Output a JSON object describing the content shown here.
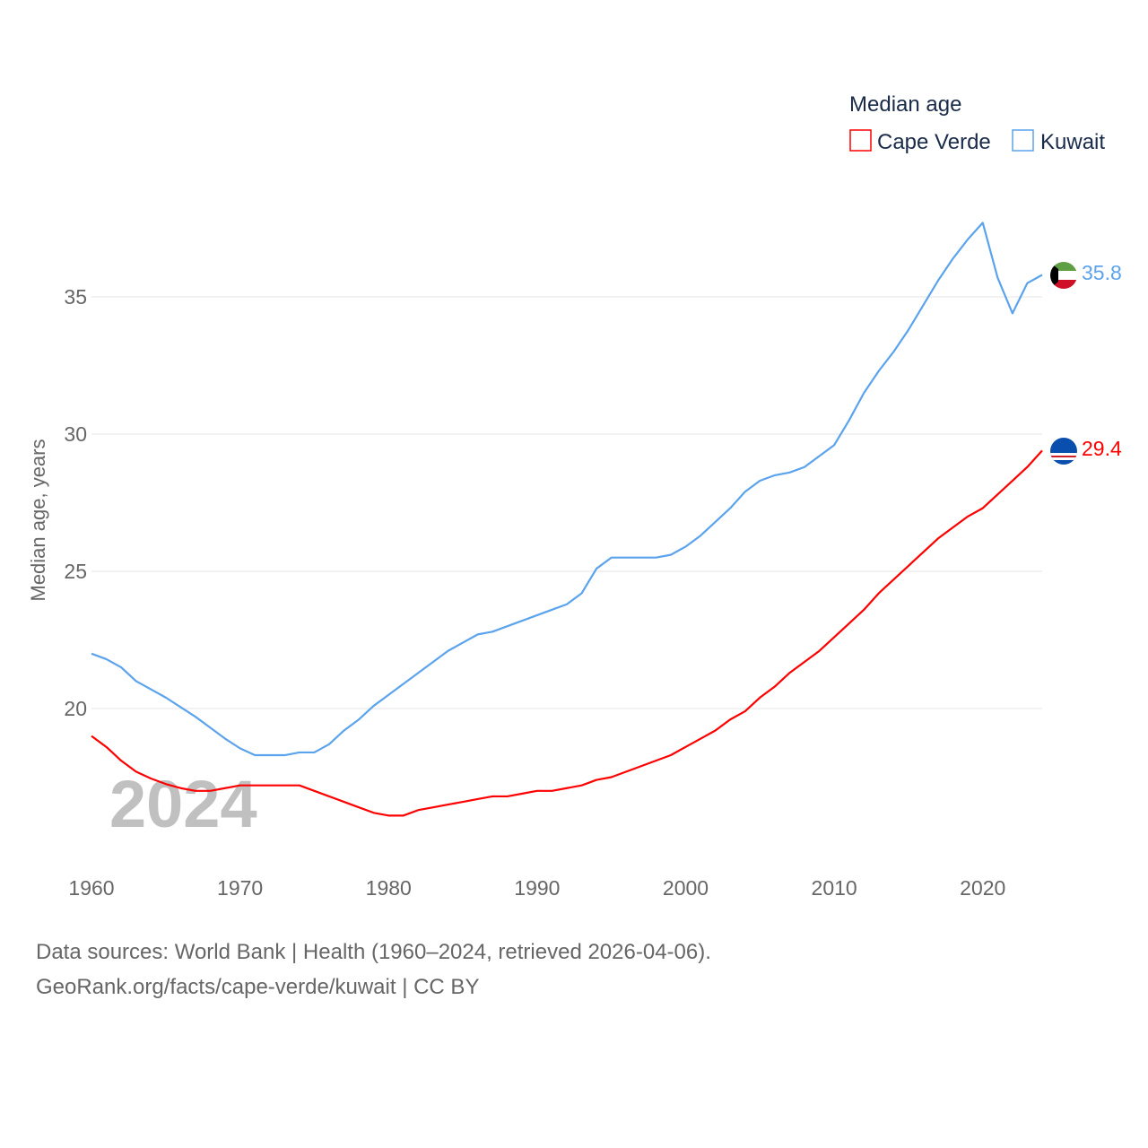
{
  "chart_data": {
    "type": "line",
    "title": "",
    "legend_title": "Median age",
    "legend_position": "top-right",
    "ylabel": "Median age, years",
    "xlabel": "",
    "xlim": [
      1960,
      2024
    ],
    "ylim": [
      15,
      40
    ],
    "x_ticks": [
      "1960",
      "1970",
      "1980",
      "1990",
      "2000",
      "2010",
      "2020"
    ],
    "y_ticks": [
      "20",
      "25",
      "30",
      "35"
    ],
    "grid": true,
    "year_label": "2024",
    "x": [
      1960,
      1961,
      1962,
      1963,
      1964,
      1965,
      1966,
      1967,
      1968,
      1969,
      1970,
      1971,
      1972,
      1973,
      1974,
      1975,
      1976,
      1977,
      1978,
      1979,
      1980,
      1981,
      1982,
      1983,
      1984,
      1985,
      1986,
      1987,
      1988,
      1989,
      1990,
      1991,
      1992,
      1993,
      1994,
      1995,
      1996,
      1997,
      1998,
      1999,
      2000,
      2001,
      2002,
      2003,
      2004,
      2005,
      2006,
      2007,
      2008,
      2009,
      2010,
      2011,
      2012,
      2013,
      2014,
      2015,
      2016,
      2017,
      2018,
      2019,
      2020,
      2021,
      2022,
      2023,
      2024
    ],
    "series": [
      {
        "name": "Cape Verde",
        "color": "#ff0000",
        "end_label": "29.4",
        "values": [
          19.0,
          18.6,
          18.1,
          17.7,
          17.45,
          17.25,
          17.1,
          17.0,
          17.0,
          17.1,
          17.2,
          17.2,
          17.2,
          17.2,
          17.2,
          17.0,
          16.8,
          16.6,
          16.4,
          16.2,
          16.1,
          16.1,
          16.3,
          16.4,
          16.5,
          16.6,
          16.7,
          16.8,
          16.8,
          16.9,
          17.0,
          17.0,
          17.1,
          17.2,
          17.4,
          17.5,
          17.7,
          17.9,
          18.1,
          18.3,
          18.6,
          18.9,
          19.2,
          19.6,
          19.9,
          20.4,
          20.8,
          21.3,
          21.7,
          22.1,
          22.6,
          23.1,
          23.6,
          24.2,
          24.7,
          25.2,
          25.7,
          26.2,
          26.6,
          27.0,
          27.3,
          27.8,
          28.3,
          28.8,
          29.4
        ]
      },
      {
        "name": "Kuwait",
        "color": "#5ba3ec",
        "end_label": "35.8",
        "values": [
          22.0,
          21.8,
          21.5,
          21.0,
          20.7,
          20.4,
          20.05,
          19.7,
          19.3,
          18.9,
          18.55,
          18.3,
          18.3,
          18.3,
          18.4,
          18.4,
          18.7,
          19.2,
          19.6,
          20.1,
          20.5,
          20.9,
          21.3,
          21.7,
          22.1,
          22.4,
          22.7,
          22.8,
          23.0,
          23.2,
          23.4,
          23.6,
          23.8,
          24.2,
          25.1,
          25.5,
          25.5,
          25.5,
          25.5,
          25.6,
          25.9,
          26.3,
          26.8,
          27.3,
          27.9,
          28.3,
          28.5,
          28.6,
          28.8,
          29.2,
          29.6,
          30.5,
          31.5,
          32.3,
          33.0,
          33.8,
          34.7,
          35.6,
          36.4,
          37.1,
          37.7,
          35.7,
          34.4,
          35.5,
          35.8
        ]
      }
    ]
  },
  "footer": {
    "line1": "Data sources: World Bank | Health (1960–2024, retrieved 2026-04-06).",
    "line2": "GeoRank.org/facts/cape-verde/kuwait | CC BY"
  }
}
